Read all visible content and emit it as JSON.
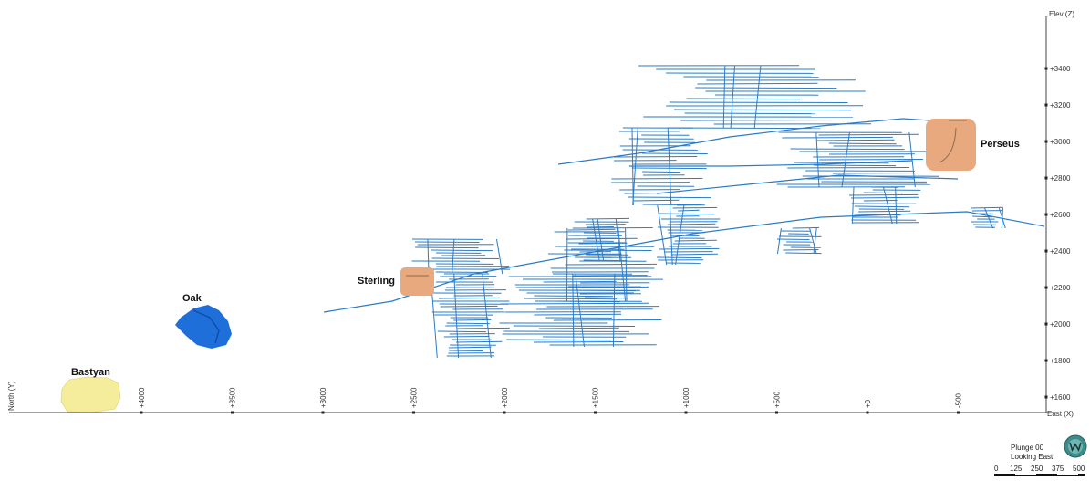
{
  "axes": {
    "elev_label": "Elev (Z)",
    "north_label": "North (Y)",
    "east_label": "East (X)",
    "elev_ticks": [
      "+3400",
      "+3200",
      "+3000",
      "+2800",
      "+2600",
      "+2400",
      "+2200",
      "+2000",
      "+1800",
      "+1600"
    ],
    "east_ticks": [
      "+4000",
      "+3500",
      "+3000",
      "+2500",
      "+2000",
      "+1500",
      "+1000",
      "+500",
      "+0",
      "-500"
    ],
    "axis_color": "#444444"
  },
  "zones": [
    {
      "name": "Perseus",
      "shape": "rounded-box",
      "color": "#E8A97F"
    },
    {
      "name": "Sterling",
      "shape": "rounded-box",
      "color": "#E8A97F"
    },
    {
      "name": "Oak",
      "shape": "blob",
      "color": "#1E6FD9"
    },
    {
      "name": "Bastyan",
      "shape": "blob",
      "color": "#F5EC9C"
    }
  ],
  "workings_color": "#2A7BC6",
  "view": {
    "plunge": "Plunge 00",
    "looking": "Looking East",
    "orientation_icon": "compass-globe-icon"
  },
  "scale_bar": {
    "labels": [
      "0",
      "125",
      "250",
      "375",
      "500"
    ]
  }
}
